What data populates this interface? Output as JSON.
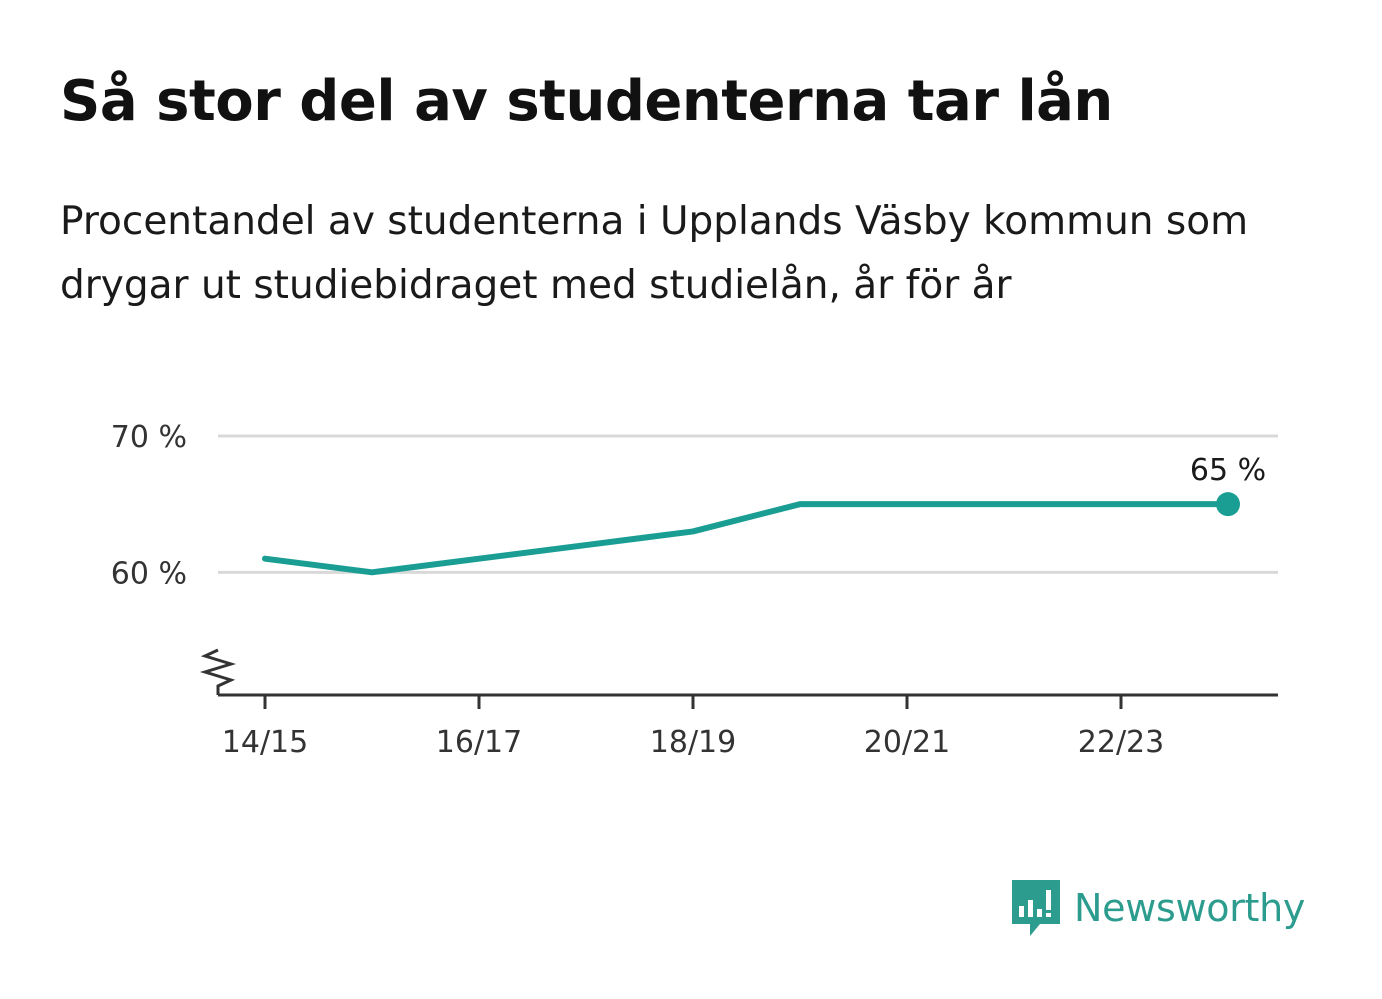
{
  "title": "Så stor del av studenterna tar lån",
  "subtitle": "Procentandel av studenterna i Upplands Väsby kommun som drygar ut studiebidraget med studielån, år för år",
  "brand": {
    "name": "Newsworthy",
    "color": "#2c9c8e",
    "icon": "newsworthy-logo-icon"
  },
  "chart_data": {
    "type": "line",
    "categories": [
      "14/15",
      "15/16",
      "16/17",
      "17/18",
      "18/19",
      "19/20",
      "20/21",
      "21/22",
      "22/23",
      "23/24"
    ],
    "series": [
      {
        "values": [
          61,
          60,
          61,
          62,
          63,
          65,
          65,
          65,
          65,
          65
        ],
        "color": "#1a9e93"
      }
    ],
    "x_tick_labels": [
      "14/15",
      "16/17",
      "18/19",
      "20/21",
      "22/23"
    ],
    "y_ticks": [
      {
        "value": 60,
        "label": "60 %"
      },
      {
        "value": 70,
        "label": "70 %"
      }
    ],
    "ylim": [
      51,
      70
    ],
    "y_axis_broken": true,
    "grid": true,
    "last_point_label": "65 %",
    "xlabel": "",
    "ylabel": ""
  }
}
